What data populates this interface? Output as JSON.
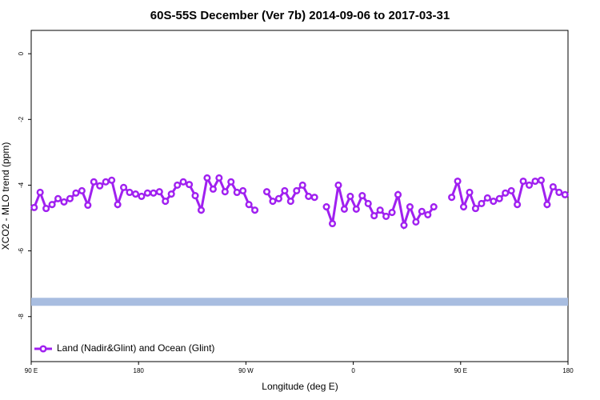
{
  "chart_data": {
    "type": "line",
    "title": "60S-55S December (Ver 7b)   2014-09-06 to 2017-03-31",
    "x_label": "Longitude (deg E)",
    "y_label": "XCO2 - MLO trend (ppm)",
    "xlim": [
      90,
      540
    ],
    "ylim": [
      -9.37,
      0.71
    ],
    "xticks": [
      {
        "value": 90,
        "label": "90 E"
      },
      180,
      {
        "value": 270,
        "label": "90 W"
      },
      {
        "value": 360,
        "label": "0"
      },
      {
        "value": 450,
        "label": "90 E"
      },
      {
        "value": 540,
        "label": "180"
      }
    ],
    "yticks": [
      0,
      -2,
      -4,
      -6,
      -8
    ],
    "legend": "bottom-left",
    "band": {
      "y": -7.55,
      "color": "#a8bde0"
    },
    "x": [
      92.5,
      97.5,
      102.5,
      107.5,
      112.5,
      117.5,
      122.5,
      127.5,
      132.5,
      137.5,
      142.5,
      147.5,
      152.5,
      157.5,
      162.5,
      167.5,
      172.5,
      177.5,
      182.5,
      187.5,
      192.5,
      197.5,
      202.5,
      207.5,
      212.5,
      217.5,
      222.5,
      227.5,
      232.5,
      237.5,
      242.5,
      247.5,
      252.5,
      257.5,
      262.5,
      267.5,
      272.5,
      277.5,
      282.5,
      287.5,
      292.5,
      297.5,
      302.5,
      307.5,
      312.5,
      317.5,
      322.5,
      327.5,
      332.5,
      337.5,
      342.5,
      347.5,
      352.5,
      357.5,
      362.5,
      367.5,
      372.5,
      377.5,
      382.5,
      387.5,
      392.5,
      397.5,
      402.5,
      407.5,
      412.5,
      417.5,
      422.5,
      427.5,
      432.5,
      437.5,
      442.5,
      447.5,
      452.5,
      457.5,
      462.5,
      467.5,
      472.5,
      477.5,
      482.5,
      487.5,
      492.5,
      497.5,
      502.5,
      507.5,
      512.5,
      517.5,
      522.5,
      527.5,
      532.5,
      537.5
    ],
    "series": [
      {
        "name": "Land (Nadir&Glint) and Ocean (Glint)",
        "color": "#a020f0",
        "values": [
          -4.68,
          -4.22,
          -4.71,
          -4.59,
          -4.41,
          -4.51,
          -4.41,
          -4.24,
          -4.17,
          -4.61,
          -3.9,
          -4.02,
          -3.9,
          -3.85,
          -4.59,
          -4.07,
          -4.22,
          -4.27,
          -4.34,
          -4.24,
          -4.24,
          -4.2,
          -4.49,
          -4.27,
          -4.0,
          -3.9,
          -3.98,
          -4.32,
          -4.76,
          -3.78,
          -4.12,
          -3.78,
          -4.2,
          -3.9,
          -4.22,
          -4.17,
          -4.59,
          -4.76,
          null,
          -4.2,
          -4.49,
          -4.41,
          -4.17,
          -4.49,
          -4.17,
          -4.0,
          -4.34,
          -4.37,
          null,
          -4.66,
          -5.17,
          -4.0,
          -4.73,
          -4.34,
          -4.73,
          -4.32,
          -4.56,
          -4.93,
          -4.76,
          -4.95,
          -4.83,
          -4.29,
          -5.22,
          -4.66,
          -5.12,
          -4.8,
          -4.9,
          -4.66,
          null,
          null,
          -4.37,
          -3.88,
          -4.66,
          -4.22,
          -4.71,
          -4.56,
          -4.39,
          -4.49,
          -4.41,
          -4.24,
          -4.17,
          -4.59,
          -3.88,
          -4.0,
          -3.88,
          -3.85,
          -4.59,
          -4.05,
          -4.22,
          -4.29
        ]
      }
    ]
  }
}
